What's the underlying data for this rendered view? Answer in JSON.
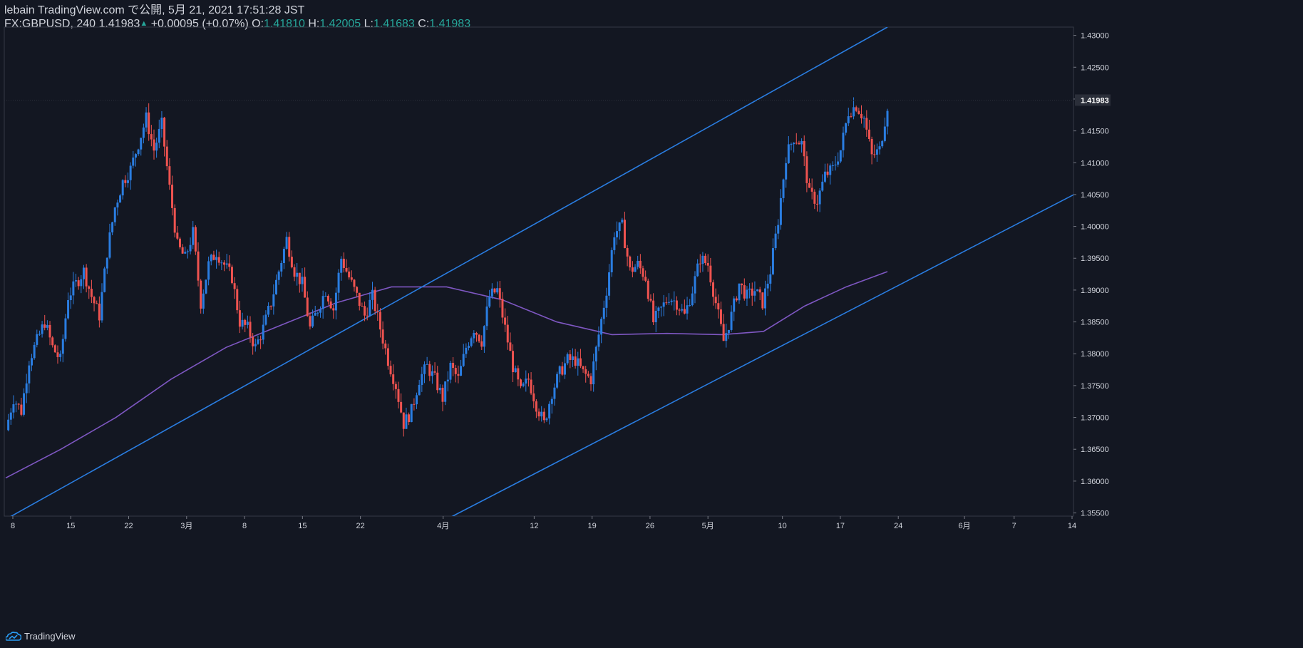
{
  "header": {
    "published_line": "lebain TradingView.com で公開, 5月 21, 2021 17:51:28 JST",
    "symbol_interval": "FX:GBPUSD, 240",
    "last_price": "1.41983",
    "change": "+0.00095 (+0.07%)",
    "o_label": "O:",
    "o_value": "1.41810",
    "h_label": "H:",
    "h_value": "1.42005",
    "l_label": "L:",
    "l_value": "1.41683",
    "c_label": "C:",
    "c_value": "1.41983"
  },
  "footer": {
    "brand": "TradingView"
  },
  "chart_data": {
    "type": "candlestick",
    "symbol": "FX:GBPUSD",
    "interval": "240",
    "ylim": [
      1.3545,
      1.4313
    ],
    "y_ticks": [
      "1.43000",
      "1.42500",
      "1.42000",
      "1.41500",
      "1.41000",
      "1.40500",
      "1.40000",
      "1.39500",
      "1.39000",
      "1.38500",
      "1.38000",
      "1.37500",
      "1.37000",
      "1.36500",
      "1.36000",
      "1.35500"
    ],
    "y_tick_values": [
      1.43,
      1.425,
      1.42,
      1.415,
      1.41,
      1.405,
      1.4,
      1.395,
      1.39,
      1.385,
      1.38,
      1.375,
      1.37,
      1.365,
      1.36,
      1.355
    ],
    "last_price_label": "1.41983",
    "last_price": 1.41983,
    "x_range_days": [
      0,
      104
    ],
    "x_ticks": [
      {
        "label": "8",
        "day": 0
      },
      {
        "label": "15",
        "day": 7
      },
      {
        "label": "22",
        "day": 14
      },
      {
        "label": "3月",
        "day": 21
      },
      {
        "label": "8",
        "day": 28
      },
      {
        "label": "15",
        "day": 35
      },
      {
        "label": "22",
        "day": 42
      },
      {
        "label": "4月",
        "day": 52
      },
      {
        "label": "12",
        "day": 63
      },
      {
        "label": "19",
        "day": 70
      },
      {
        "label": "26",
        "day": 77
      },
      {
        "label": "5月",
        "day": 84
      },
      {
        "label": "10",
        "day": 93
      },
      {
        "label": "17",
        "day": 100
      },
      {
        "label": "24",
        "day": 107
      },
      {
        "label": "6月",
        "day": 115
      },
      {
        "label": "7",
        "day": 121
      },
      {
        "label": "14",
        "day": 128
      }
    ],
    "price_path": [
      [
        0,
        1.368
      ],
      [
        1,
        1.373
      ],
      [
        2,
        1.371
      ],
      [
        3,
        1.379
      ],
      [
        4,
        1.382
      ],
      [
        5,
        1.385
      ],
      [
        6,
        1.381
      ],
      [
        7,
        1.379
      ],
      [
        8,
        1.389
      ],
      [
        9,
        1.391
      ],
      [
        10,
        1.393
      ],
      [
        11,
        1.389
      ],
      [
        12,
        1.386
      ],
      [
        13,
        1.396
      ],
      [
        14,
        1.403
      ],
      [
        15,
        1.407
      ],
      [
        16,
        1.409
      ],
      [
        17,
        1.413
      ],
      [
        18,
        1.417
      ],
      [
        19,
        1.412
      ],
      [
        20,
        1.416
      ],
      [
        21,
        1.406
      ],
      [
        22,
        1.397
      ],
      [
        23,
        1.395
      ],
      [
        24,
        1.399
      ],
      [
        25,
        1.388
      ],
      [
        26,
        1.394
      ],
      [
        27,
        1.396
      ],
      [
        28,
        1.394
      ],
      [
        29,
        1.392
      ],
      [
        30,
        1.385
      ],
      [
        31,
        1.384
      ],
      [
        32,
        1.381
      ],
      [
        33,
        1.384
      ],
      [
        34,
        1.388
      ],
      [
        35,
        1.393
      ],
      [
        36,
        1.398
      ],
      [
        37,
        1.393
      ],
      [
        38,
        1.391
      ],
      [
        39,
        1.384
      ],
      [
        40,
        1.387
      ],
      [
        41,
        1.39
      ],
      [
        42,
        1.387
      ],
      [
        43,
        1.395
      ],
      [
        44,
        1.392
      ],
      [
        45,
        1.389
      ],
      [
        46,
        1.386
      ],
      [
        47,
        1.389
      ],
      [
        48,
        1.384
      ],
      [
        49,
        1.379
      ],
      [
        50,
        1.375
      ],
      [
        51,
        1.369
      ],
      [
        52,
        1.371
      ],
      [
        53,
        1.376
      ],
      [
        54,
        1.378
      ],
      [
        55,
        1.376
      ],
      [
        56,
        1.373
      ],
      [
        57,
        1.378
      ],
      [
        58,
        1.376
      ],
      [
        59,
        1.381
      ],
      [
        60,
        1.384
      ],
      [
        61,
        1.382
      ],
      [
        62,
        1.389
      ],
      [
        63,
        1.39
      ],
      [
        64,
        1.384
      ],
      [
        65,
        1.378
      ],
      [
        66,
        1.374
      ],
      [
        67,
        1.376
      ],
      [
        68,
        1.372
      ],
      [
        69,
        1.369
      ],
      [
        70,
        1.374
      ],
      [
        71,
        1.377
      ],
      [
        72,
        1.379
      ],
      [
        73,
        1.379
      ],
      [
        74,
        1.377
      ],
      [
        75,
        1.376
      ],
      [
        76,
        1.383
      ],
      [
        77,
        1.39
      ],
      [
        78,
        1.399
      ],
      [
        79,
        1.4
      ],
      [
        80,
        1.393
      ],
      [
        81,
        1.394
      ],
      [
        82,
        1.392
      ],
      [
        83,
        1.385
      ],
      [
        84,
        1.387
      ],
      [
        85,
        1.389
      ],
      [
        86,
        1.388
      ],
      [
        87,
        1.386
      ],
      [
        88,
        1.39
      ],
      [
        89,
        1.395
      ],
      [
        90,
        1.394
      ],
      [
        91,
        1.388
      ],
      [
        92,
        1.382
      ],
      [
        93,
        1.386
      ],
      [
        94,
        1.391
      ],
      [
        95,
        1.389
      ],
      [
        96,
        1.39
      ],
      [
        97,
        1.388
      ],
      [
        98,
        1.393
      ],
      [
        99,
        1.401
      ],
      [
        100,
        1.411
      ],
      [
        101,
        1.414
      ],
      [
        102,
        1.413
      ],
      [
        103,
        1.405
      ],
      [
        104,
        1.404
      ],
      [
        105,
        1.408
      ],
      [
        106,
        1.409
      ],
      [
        107,
        1.412
      ],
      [
        108,
        1.418
      ],
      [
        109,
        1.419
      ],
      [
        110,
        1.417
      ],
      [
        111,
        1.411
      ],
      [
        112,
        1.412
      ],
      [
        113,
        1.419
      ]
    ],
    "price_path_note_units": "x = bar index group (≈4 bars/day), y = price",
    "moving_average": {
      "color": "#7e57c2",
      "points": [
        [
          0,
          1.3605
        ],
        [
          8,
          1.365
        ],
        [
          16,
          1.37
        ],
        [
          24,
          1.376
        ],
        [
          32,
          1.381
        ],
        [
          40,
          1.3845
        ],
        [
          48,
          1.388
        ],
        [
          56,
          1.3905
        ],
        [
          64,
          1.3905
        ],
        [
          72,
          1.3885
        ],
        [
          80,
          1.385
        ],
        [
          88,
          1.383
        ],
        [
          96,
          1.3832
        ],
        [
          104,
          1.383
        ],
        [
          110,
          1.3835
        ],
        [
          116,
          1.3875
        ],
        [
          122,
          1.3905
        ],
        [
          128,
          1.3929
        ]
      ]
    },
    "channel_upper": {
      "color": "#2a7de1",
      "start": [
        0,
        1.354
      ],
      "end": [
        128,
        1.4313
      ]
    },
    "channel_lower": {
      "color": "#2a7de1",
      "start": [
        64,
        1.354
      ],
      "end": [
        164,
        1.41
      ]
    },
    "colors": {
      "up": "#2a7de1",
      "down": "#ef5350",
      "bg": "#131722",
      "grid": "#2a2e39",
      "text": "#d1d4dc"
    },
    "grid": false
  }
}
